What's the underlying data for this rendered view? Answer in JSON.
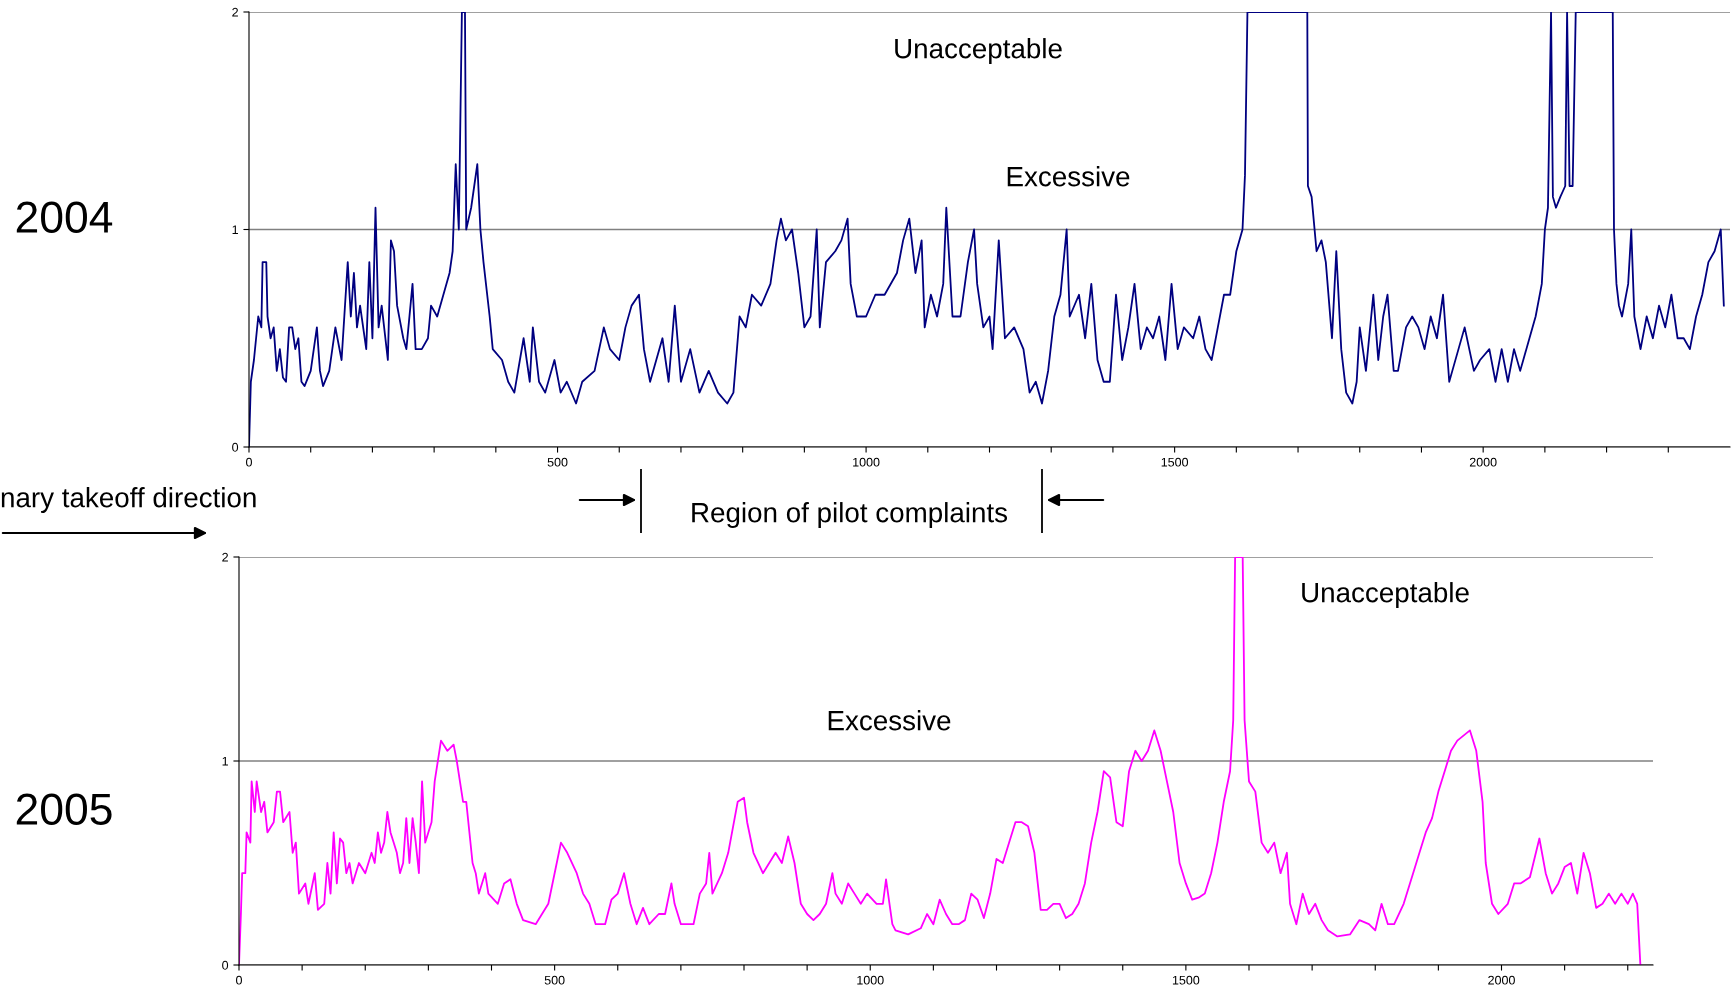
{
  "chart_data": [
    {
      "type": "line",
      "annotations": [
        "2004",
        "Unacceptable",
        "Excessive",
        "Region of pilot complaints",
        "nary takeoff direction"
      ],
      "xlim": [
        0,
        2400
      ],
      "xticks": [
        0,
        {
          "value": 100,
          "label": null
        },
        {
          "value": 200,
          "label": null
        },
        {
          "value": 300,
          "label": null
        },
        {
          "value": 400,
          "label": null
        },
        500,
        {
          "value": 600,
          "label": null
        },
        {
          "value": 700,
          "label": null
        },
        {
          "value": 800,
          "label": null
        },
        {
          "value": 900,
          "label": null
        },
        1000,
        {
          "value": 1100,
          "label": null
        },
        {
          "value": 1200,
          "label": null
        },
        {
          "value": 1300,
          "label": null
        },
        {
          "value": 1400,
          "label": null
        },
        1500,
        {
          "value": 1600,
          "label": null
        },
        {
          "value": 1700,
          "label": null
        },
        {
          "value": 1800,
          "label": null
        },
        {
          "value": 1900,
          "label": null
        },
        2000,
        {
          "value": 2100,
          "label": null
        },
        {
          "value": 2200,
          "label": null
        },
        {
          "value": 2300,
          "label": null
        }
      ],
      "ylim": [
        0,
        2
      ],
      "yticks": [
        0,
        1,
        2
      ],
      "grid": "y",
      "legend": false,
      "series": [
        {
          "color": "#000080",
          "x": [
            0,
            3,
            8,
            15,
            20,
            22,
            28,
            30,
            35,
            40,
            45,
            50,
            55,
            60,
            65,
            70,
            75,
            80,
            85,
            90,
            100,
            110,
            115,
            120,
            130,
            140,
            150,
            160,
            165,
            170,
            175,
            180,
            190,
            195,
            200,
            205,
            210,
            215,
            225,
            230,
            235,
            240,
            250,
            255,
            265,
            270,
            280,
            290,
            295,
            305,
            315,
            325,
            330,
            335,
            340,
            345,
            350,
            352,
            360,
            370,
            375,
            380,
            390,
            395,
            410,
            420,
            430,
            445,
            455,
            460,
            470,
            480,
            495,
            505,
            515,
            530,
            540,
            560,
            575,
            585,
            600,
            610,
            620,
            632,
            640,
            650,
            670,
            680,
            690,
            700,
            715,
            730,
            745,
            760,
            775,
            785,
            795,
            805,
            815,
            830,
            845,
            855,
            862,
            870,
            880,
            890,
            900,
            910,
            920,
            925,
            935,
            950,
            960,
            970,
            975,
            985,
            1000,
            1015,
            1030,
            1050,
            1060,
            1070,
            1080,
            1090,
            1095,
            1105,
            1115,
            1125,
            1130,
            1140,
            1153,
            1165,
            1175,
            1180,
            1190,
            1200,
            1205,
            1215,
            1225,
            1240,
            1255,
            1265,
            1275,
            1285,
            1295,
            1305,
            1315,
            1325,
            1330,
            1345,
            1355,
            1365,
            1375,
            1385,
            1395,
            1405,
            1415,
            1425,
            1435,
            1445,
            1455,
            1465,
            1475,
            1485,
            1495,
            1505,
            1515,
            1530,
            1540,
            1550,
            1560,
            1570,
            1580,
            1590,
            1600,
            1610,
            1614,
            1618,
            1715,
            1716,
            1722,
            1730,
            1738,
            1745,
            1755,
            1762,
            1770,
            1778,
            1788,
            1795,
            1800,
            1810,
            1822,
            1830,
            1838,
            1845,
            1855,
            1862,
            1875,
            1885,
            1895,
            1905,
            1915,
            1925,
            1935,
            1945,
            1950,
            1960,
            1970,
            1985,
            1995,
            2010,
            2020,
            2030,
            2040,
            2050,
            2060,
            2075,
            2085,
            2095,
            2100,
            2105,
            2110,
            2113,
            2118,
            2125,
            2133,
            2136,
            2140,
            2145,
            2150,
            2210,
            2212,
            2216,
            2220,
            2225,
            2235,
            2240,
            2245,
            2255,
            2265,
            2275,
            2285,
            2295,
            2305,
            2315,
            2325,
            2335,
            2345,
            2355,
            2365,
            2375,
            2385,
            2390
          ],
          "values": [
            0,
            0.3,
            0.4,
            0.6,
            0.55,
            0.85,
            0.85,
            0.6,
            0.5,
            0.55,
            0.35,
            0.45,
            0.32,
            0.3,
            0.55,
            0.55,
            0.45,
            0.5,
            0.3,
            0.28,
            0.35,
            0.55,
            0.35,
            0.28,
            0.35,
            0.55,
            0.4,
            0.85,
            0.6,
            0.8,
            0.55,
            0.65,
            0.45,
            0.85,
            0.5,
            1.1,
            0.55,
            0.65,
            0.4,
            0.95,
            0.9,
            0.65,
            0.5,
            0.45,
            0.75,
            0.45,
            0.45,
            0.5,
            0.65,
            0.6,
            0.7,
            0.8,
            0.9,
            1.3,
            1.0,
            2.0,
            2.0,
            1.0,
            1.1,
            1.3,
            1.0,
            0.85,
            0.6,
            0.45,
            0.4,
            0.3,
            0.25,
            0.5,
            0.3,
            0.55,
            0.3,
            0.25,
            0.4,
            0.25,
            0.3,
            0.2,
            0.3,
            0.35,
            0.55,
            0.45,
            0.4,
            0.55,
            0.65,
            0.7,
            0.45,
            0.3,
            0.5,
            0.3,
            0.65,
            0.3,
            0.45,
            0.25,
            0.35,
            0.25,
            0.2,
            0.25,
            0.6,
            0.55,
            0.7,
            0.65,
            0.75,
            0.95,
            1.05,
            0.95,
            1.0,
            0.8,
            0.55,
            0.6,
            1.0,
            0.55,
            0.85,
            0.9,
            0.95,
            1.05,
            0.75,
            0.6,
            0.6,
            0.7,
            0.7,
            0.8,
            0.95,
            1.05,
            0.8,
            0.95,
            0.55,
            0.7,
            0.6,
            0.75,
            1.1,
            0.6,
            0.6,
            0.85,
            1.0,
            0.75,
            0.55,
            0.6,
            0.45,
            0.95,
            0.5,
            0.55,
            0.45,
            0.25,
            0.3,
            0.2,
            0.35,
            0.6,
            0.7,
            1.0,
            0.6,
            0.7,
            0.5,
            0.75,
            0.4,
            0.3,
            0.3,
            0.7,
            0.4,
            0.55,
            0.75,
            0.45,
            0.55,
            0.5,
            0.6,
            0.4,
            0.75,
            0.45,
            0.55,
            0.5,
            0.6,
            0.45,
            0.4,
            0.55,
            0.7,
            0.7,
            0.9,
            1.0,
            1.25,
            2.0,
            2.0,
            1.2,
            1.15,
            0.9,
            0.95,
            0.85,
            0.5,
            0.9,
            0.45,
            0.25,
            0.2,
            0.3,
            0.55,
            0.35,
            0.7,
            0.4,
            0.6,
            0.7,
            0.35,
            0.35,
            0.55,
            0.6,
            0.55,
            0.45,
            0.6,
            0.5,
            0.7,
            0.3,
            0.35,
            0.45,
            0.55,
            0.35,
            0.4,
            0.45,
            0.3,
            0.45,
            0.3,
            0.45,
            0.35,
            0.5,
            0.6,
            0.75,
            1.0,
            1.1,
            2.0,
            1.15,
            1.1,
            1.15,
            1.2,
            2.0,
            1.2,
            1.2,
            2.0,
            2.0,
            1.0,
            0.75,
            0.65,
            0.6,
            0.75,
            1.0,
            0.6,
            0.45,
            0.6,
            0.5,
            0.65,
            0.55,
            0.7,
            0.5,
            0.5,
            0.45,
            0.6,
            0.7,
            0.85,
            0.9,
            1.0,
            0.65
          ]
        }
      ]
    },
    {
      "type": "line",
      "annotations": [
        "2005",
        "Unacceptable",
        "Excessive"
      ],
      "xlim": [
        0,
        2240
      ],
      "xticks": [
        0,
        {
          "value": 100,
          "label": null
        },
        {
          "value": 200,
          "label": null
        },
        {
          "value": 300,
          "label": null
        },
        {
          "value": 400,
          "label": null
        },
        500,
        {
          "value": 600,
          "label": null
        },
        {
          "value": 700,
          "label": null
        },
        {
          "value": 800,
          "label": null
        },
        {
          "value": 900,
          "label": null
        },
        1000,
        {
          "value": 1100,
          "label": null
        },
        {
          "value": 1200,
          "label": null
        },
        {
          "value": 1300,
          "label": null
        },
        {
          "value": 1400,
          "label": null
        },
        1500,
        {
          "value": 1600,
          "label": null
        },
        {
          "value": 1700,
          "label": null
        },
        {
          "value": 1800,
          "label": null
        },
        {
          "value": 1900,
          "label": null
        },
        2000,
        {
          "value": 2100,
          "label": null
        },
        {
          "value": 2200,
          "label": null
        }
      ],
      "ylim": [
        0,
        2
      ],
      "yticks": [
        0,
        1,
        2
      ],
      "grid": "y",
      "legend": false,
      "series": [
        {
          "color": "#ff00ff",
          "x": [
            0,
            3,
            5,
            10,
            12,
            18,
            20,
            25,
            28,
            35,
            40,
            45,
            55,
            60,
            65,
            70,
            80,
            85,
            90,
            95,
            105,
            110,
            120,
            125,
            135,
            140,
            145,
            150,
            155,
            160,
            165,
            170,
            175,
            180,
            190,
            200,
            210,
            215,
            220,
            225,
            230,
            235,
            240,
            245,
            250,
            255,
            260,
            265,
            270,
            275,
            280,
            285,
            290,
            295,
            305,
            310,
            320,
            330,
            340,
            345,
            355,
            360,
            370,
            375,
            380,
            390,
            395,
            410,
            420,
            430,
            440,
            450,
            470,
            490,
            500,
            510,
            520,
            535,
            545,
            555,
            565,
            580,
            590,
            600,
            610,
            620,
            630,
            640,
            650,
            665,
            675,
            685,
            690,
            700,
            710,
            720,
            730,
            740,
            745,
            750,
            765,
            775,
            790,
            800,
            805,
            815,
            830,
            840,
            850,
            860,
            870,
            880,
            890,
            900,
            910,
            920,
            930,
            940,
            945,
            955,
            965,
            975,
            985,
            995,
            1010,
            1020,
            1025,
            1035,
            1040,
            1060,
            1080,
            1090,
            1100,
            1110,
            1120,
            1130,
            1140,
            1150,
            1160,
            1170,
            1180,
            1190,
            1200,
            1210,
            1220,
            1230,
            1240,
            1250,
            1260,
            1270,
            1280,
            1290,
            1300,
            1310,
            1320,
            1330,
            1340,
            1350,
            1360,
            1370,
            1380,
            1390,
            1400,
            1410,
            1420,
            1430,
            1440,
            1450,
            1460,
            1470,
            1480,
            1490,
            1500,
            1510,
            1520,
            1530,
            1540,
            1550,
            1560,
            1570,
            1575,
            1578,
            1590,
            1593,
            1600,
            1610,
            1620,
            1630,
            1640,
            1650,
            1660,
            1665,
            1675,
            1685,
            1695,
            1705,
            1715,
            1725,
            1740,
            1760,
            1775,
            1790,
            1800,
            1810,
            1820,
            1830,
            1845,
            1860,
            1870,
            1880,
            1890,
            1900,
            1910,
            1920,
            1930,
            1950,
            1960,
            1970,
            1975,
            1985,
            1995,
            2010,
            2020,
            2030,
            2045,
            2060,
            2070,
            2080,
            2090,
            2100,
            2110,
            2120,
            2130,
            2140,
            2150,
            2160,
            2170,
            2180,
            2190,
            2200,
            2208,
            2215,
            2220
          ],
          "values": [
            0,
            0.25,
            0.45,
            0.45,
            0.65,
            0.6,
            0.9,
            0.75,
            0.9,
            0.75,
            0.8,
            0.65,
            0.7,
            0.85,
            0.85,
            0.7,
            0.75,
            0.55,
            0.6,
            0.35,
            0.4,
            0.3,
            0.45,
            0.27,
            0.3,
            0.5,
            0.35,
            0.65,
            0.4,
            0.62,
            0.6,
            0.45,
            0.5,
            0.4,
            0.5,
            0.45,
            0.55,
            0.5,
            0.65,
            0.55,
            0.6,
            0.75,
            0.65,
            0.6,
            0.55,
            0.45,
            0.5,
            0.72,
            0.5,
            0.72,
            0.6,
            0.45,
            0.9,
            0.6,
            0.7,
            0.9,
            1.1,
            1.05,
            1.08,
            1.0,
            0.8,
            0.8,
            0.5,
            0.45,
            0.35,
            0.45,
            0.35,
            0.3,
            0.4,
            0.42,
            0.3,
            0.22,
            0.2,
            0.3,
            0.45,
            0.6,
            0.55,
            0.45,
            0.35,
            0.3,
            0.2,
            0.2,
            0.32,
            0.35,
            0.45,
            0.3,
            0.2,
            0.28,
            0.2,
            0.25,
            0.25,
            0.4,
            0.3,
            0.2,
            0.2,
            0.2,
            0.35,
            0.4,
            0.55,
            0.35,
            0.45,
            0.55,
            0.8,
            0.82,
            0.7,
            0.55,
            0.45,
            0.5,
            0.55,
            0.5,
            0.63,
            0.5,
            0.3,
            0.25,
            0.22,
            0.25,
            0.3,
            0.45,
            0.35,
            0.3,
            0.4,
            0.35,
            0.3,
            0.35,
            0.3,
            0.3,
            0.42,
            0.2,
            0.17,
            0.15,
            0.18,
            0.25,
            0.2,
            0.32,
            0.25,
            0.2,
            0.2,
            0.22,
            0.35,
            0.32,
            0.23,
            0.35,
            0.52,
            0.5,
            0.6,
            0.7,
            0.7,
            0.68,
            0.55,
            0.27,
            0.27,
            0.3,
            0.3,
            0.23,
            0.25,
            0.3,
            0.4,
            0.6,
            0.75,
            0.95,
            0.92,
            0.7,
            0.68,
            0.95,
            1.05,
            1.0,
            1.05,
            1.15,
            1.05,
            0.9,
            0.75,
            0.5,
            0.4,
            0.32,
            0.33,
            0.35,
            0.45,
            0.6,
            0.8,
            0.95,
            1.2,
            2.0,
            2.0,
            1.2,
            0.9,
            0.85,
            0.6,
            0.55,
            0.6,
            0.45,
            0.55,
            0.3,
            0.2,
            0.35,
            0.25,
            0.3,
            0.22,
            0.17,
            0.14,
            0.15,
            0.22,
            0.2,
            0.17,
            0.3,
            0.2,
            0.2,
            0.3,
            0.45,
            0.55,
            0.65,
            0.72,
            0.85,
            0.95,
            1.05,
            1.1,
            1.15,
            1.05,
            0.8,
            0.5,
            0.3,
            0.25,
            0.3,
            0.4,
            0.4,
            0.43,
            0.62,
            0.45,
            0.35,
            0.4,
            0.48,
            0.5,
            0.35,
            0.55,
            0.45,
            0.28,
            0.3,
            0.35,
            0.3,
            0.35,
            0.3,
            0.35,
            0.3,
            0.0
          ]
        }
      ]
    }
  ]
}
